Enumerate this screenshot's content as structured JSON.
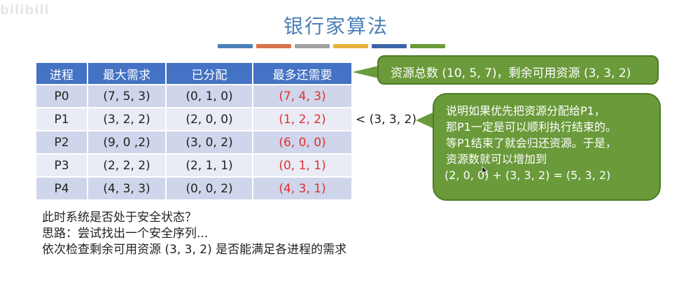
{
  "watermark": "bilibili",
  "title": "银行家算法",
  "accent_colors": [
    "#4a7fb8",
    "#d9734a",
    "#a0a0a0",
    "#e8b23a",
    "#3e64a8",
    "#6a9a3a"
  ],
  "table": {
    "headers": [
      "进程",
      "最大需求",
      "已分配",
      "最多还需要"
    ],
    "rows": [
      {
        "proc": "P0",
        "max": "(7, 5, 3)",
        "alloc": "(0, 1, 0)",
        "need": "(7, 4, 3)"
      },
      {
        "proc": "P1",
        "max": "(3, 2, 2)",
        "alloc": "(2, 0, 0)",
        "need": "(1, 2, 2)"
      },
      {
        "proc": "P2",
        "max": "(9, 0 ,2)",
        "alloc": "(3, 0, 2)",
        "need": "(6, 0, 0)"
      },
      {
        "proc": "P3",
        "max": "(2, 2, 2)",
        "alloc": "(2, 1, 1)",
        "need": "(0, 1, 1)"
      },
      {
        "proc": "P4",
        "max": "(4, 3, 3)",
        "alloc": "(0, 0, 2)",
        "need": "(4, 3, 1)"
      }
    ]
  },
  "compare_text": "< (3, 3, 2)",
  "callout_resources": "资源总数 (10, 5, 7)，剩余可用资源 (3, 3, 2)",
  "callout_explain": [
    "说明如果优先把资源分配给P1，",
    "那P1一定是可以顺利执行结束的。",
    "等P1结束了就会归还资源。于是，",
    "资源数就可以增加到",
    "(2, 0, 0) + (3, 3, 2) = (5, 3, 2)"
  ],
  "notes": [
    "此时系统是否处于安全状态？",
    "思路：尝试找出一个安全序列...",
    "依次检查剩余可用资源 (3, 3, 2) 是否能满足各进程的需求"
  ]
}
